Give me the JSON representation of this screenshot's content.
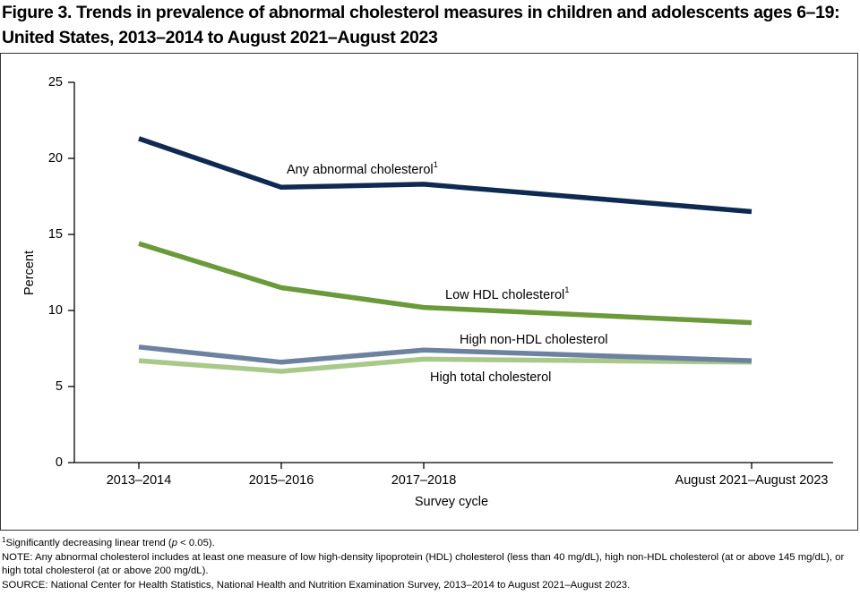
{
  "chart_data": {
    "type": "line",
    "title": "Figure 3. Trends in prevalence of abnormal cholesterol measures in children and adolescents ages 6–19: United States, 2013–2014 to August 2021–August 2023",
    "x_label": "Survey cycle",
    "y_label": "Percent",
    "categories": [
      "2013–2014",
      "2015–2016",
      "2017–2018",
      "August 2021–August 2023"
    ],
    "ylim": [
      0,
      25
    ],
    "yticks": [
      0,
      5,
      10,
      15,
      20,
      25
    ],
    "series": [
      {
        "name": "Any abnormal cholesterol",
        "note_marker": "1",
        "color": "#0f2a52",
        "values": [
          21.3,
          18.1,
          18.3,
          16.5
        ]
      },
      {
        "name": "Low HDL cholesterol",
        "note_marker": "1",
        "color": "#6b9a3a",
        "values": [
          14.4,
          11.5,
          10.2,
          9.2
        ]
      },
      {
        "name": "High non-HDL cholesterol",
        "color": "#6d82a0",
        "values": [
          7.6,
          6.6,
          7.4,
          6.7
        ]
      },
      {
        "name": "High total cholesterol",
        "color": "#a9c98a",
        "values": [
          6.7,
          6.0,
          6.8,
          6.6
        ]
      }
    ],
    "footnotes": {
      "marker": "1",
      "trend_parts": [
        "Significantly decreasing linear trend (",
        "p",
        " < 0.05)."
      ],
      "note": "NOTE: Any abnormal cholesterol includes at least one measure of low high-density lipoprotein (HDL) cholesterol (less than 40 mg/dL), high non-HDL cholesterol (at or above 145 mg/dL), or high total cholesterol (at or above 200 mg/dL).",
      "source": "SOURCE: National Center for Health Statistics, National Health and Nutrition Examination Survey, 2013–2014 to August 2021–August 2023."
    }
  }
}
